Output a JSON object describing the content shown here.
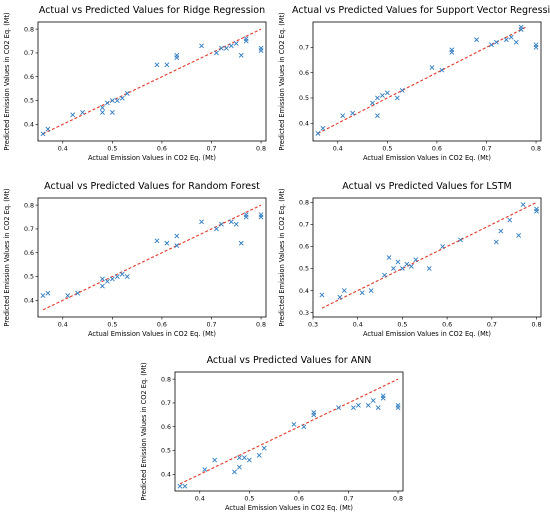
{
  "colors": {
    "points": "#2f7bbf",
    "ideal_line": "#e03a2a"
  },
  "chart_data": [
    {
      "type": "scatter",
      "title": "Actual vs Predicted Values for Ridge Regression",
      "xlabel": "Actual Emission Values in CO2 Eq. (Mt)",
      "ylabel": "Predicted Emission Values in CO2 Eq. (Mt)",
      "xlim": [
        0.35,
        0.81
      ],
      "ylim": [
        0.33,
        0.83
      ],
      "xticks": [
        0.4,
        0.5,
        0.6,
        0.7,
        0.8
      ],
      "xtick_labels": [
        "0.4",
        "0.5",
        "0.6",
        "0.7",
        "0.8"
      ],
      "yticks": [
        0.4,
        0.5,
        0.6,
        0.7,
        0.8
      ],
      "ytick_labels": [
        "0.4",
        "0.5",
        "0.6",
        "0.7",
        "0.8"
      ],
      "ideal_line": [
        0.36,
        0.8
      ],
      "points": [
        [
          0.36,
          0.36
        ],
        [
          0.37,
          0.38
        ],
        [
          0.42,
          0.44
        ],
        [
          0.44,
          0.45
        ],
        [
          0.48,
          0.45
        ],
        [
          0.48,
          0.47
        ],
        [
          0.49,
          0.49
        ],
        [
          0.5,
          0.45
        ],
        [
          0.5,
          0.5
        ],
        [
          0.51,
          0.5
        ],
        [
          0.52,
          0.51
        ],
        [
          0.53,
          0.53
        ],
        [
          0.59,
          0.65
        ],
        [
          0.61,
          0.65
        ],
        [
          0.63,
          0.68
        ],
        [
          0.63,
          0.69
        ],
        [
          0.68,
          0.73
        ],
        [
          0.71,
          0.7
        ],
        [
          0.72,
          0.72
        ],
        [
          0.73,
          0.72
        ],
        [
          0.74,
          0.73
        ],
        [
          0.75,
          0.74
        ],
        [
          0.76,
          0.69
        ],
        [
          0.77,
          0.75
        ],
        [
          0.77,
          0.76
        ],
        [
          0.8,
          0.71
        ],
        [
          0.8,
          0.72
        ]
      ]
    },
    {
      "type": "scatter",
      "title": "Actual vs Predicted Values for Support Vector Regression",
      "xlabel": "Actual Emission Values in CO2 Eq. (Mt)",
      "ylabel": "Predicted Emission Values in CO2 Eq. (Mt)",
      "xlim": [
        0.35,
        0.81
      ],
      "ylim": [
        0.33,
        0.8
      ],
      "xticks": [
        0.4,
        0.5,
        0.6,
        0.7,
        0.8
      ],
      "xtick_labels": [
        "0.4",
        "0.5",
        "0.6",
        "0.7",
        "0.8"
      ],
      "yticks": [
        0.4,
        0.5,
        0.6,
        0.7
      ],
      "ytick_labels": [
        "0.4",
        "0.5",
        "0.6",
        "0.7"
      ],
      "ideal_line": [
        0.36,
        0.78
      ],
      "points": [
        [
          0.36,
          0.36
        ],
        [
          0.37,
          0.38
        ],
        [
          0.41,
          0.43
        ],
        [
          0.43,
          0.44
        ],
        [
          0.47,
          0.48
        ],
        [
          0.48,
          0.43
        ],
        [
          0.48,
          0.5
        ],
        [
          0.49,
          0.51
        ],
        [
          0.5,
          0.52
        ],
        [
          0.52,
          0.5
        ],
        [
          0.53,
          0.53
        ],
        [
          0.59,
          0.62
        ],
        [
          0.61,
          0.61
        ],
        [
          0.63,
          0.68
        ],
        [
          0.63,
          0.69
        ],
        [
          0.68,
          0.73
        ],
        [
          0.71,
          0.71
        ],
        [
          0.72,
          0.72
        ],
        [
          0.74,
          0.73
        ],
        [
          0.75,
          0.74
        ],
        [
          0.76,
          0.72
        ],
        [
          0.77,
          0.77
        ],
        [
          0.77,
          0.78
        ],
        [
          0.8,
          0.7
        ],
        [
          0.8,
          0.71
        ]
      ]
    },
    {
      "type": "scatter",
      "title": "Actual vs Predicted Values for Random Forest",
      "xlabel": "Actual Emission Values in CO2 Eq. (Mt)",
      "ylabel": "Predicted Emission Values in CO2 Eq. (Mt)",
      "xlim": [
        0.35,
        0.81
      ],
      "ylim": [
        0.33,
        0.83
      ],
      "xticks": [
        0.4,
        0.5,
        0.6,
        0.7,
        0.8
      ],
      "xtick_labels": [
        "0.4",
        "0.5",
        "0.6",
        "0.7",
        "0.8"
      ],
      "yticks": [
        0.4,
        0.5,
        0.6,
        0.7,
        0.8
      ],
      "ytick_labels": [
        "0.4",
        "0.5",
        "0.6",
        "0.7",
        "0.8"
      ],
      "ideal_line": [
        0.36,
        0.8
      ],
      "points": [
        [
          0.36,
          0.42
        ],
        [
          0.37,
          0.43
        ],
        [
          0.41,
          0.42
        ],
        [
          0.43,
          0.43
        ],
        [
          0.48,
          0.46
        ],
        [
          0.48,
          0.49
        ],
        [
          0.49,
          0.48
        ],
        [
          0.5,
          0.49
        ],
        [
          0.51,
          0.5
        ],
        [
          0.52,
          0.51
        ],
        [
          0.53,
          0.5
        ],
        [
          0.59,
          0.65
        ],
        [
          0.61,
          0.64
        ],
        [
          0.63,
          0.63
        ],
        [
          0.63,
          0.67
        ],
        [
          0.68,
          0.73
        ],
        [
          0.71,
          0.7
        ],
        [
          0.72,
          0.72
        ],
        [
          0.74,
          0.73
        ],
        [
          0.75,
          0.72
        ],
        [
          0.76,
          0.64
        ],
        [
          0.77,
          0.75
        ],
        [
          0.77,
          0.76
        ],
        [
          0.8,
          0.75
        ],
        [
          0.8,
          0.76
        ]
      ]
    },
    {
      "type": "scatter",
      "title": "Actual vs Predicted Values for LSTM",
      "xlabel": "Actual Emission Values in CO2 Eq. (Mt)",
      "ylabel": "Predicted Emission Values in CO2 Eq. (Mt)",
      "xlim": [
        0.3,
        0.81
      ],
      "ylim": [
        0.28,
        0.82
      ],
      "xticks": [
        0.3,
        0.4,
        0.5,
        0.6,
        0.7,
        0.8
      ],
      "xtick_labels": [
        "0.3",
        "0.4",
        "0.5",
        "0.6",
        "0.7",
        "0.8"
      ],
      "yticks": [
        0.3,
        0.4,
        0.5,
        0.6,
        0.7,
        0.8
      ],
      "ytick_labels": [
        "0.3",
        "0.4",
        "0.5",
        "0.6",
        "0.7",
        "0.8"
      ],
      "ideal_line": [
        0.32,
        0.8
      ],
      "points": [
        [
          0.32,
          0.38
        ],
        [
          0.36,
          0.37
        ],
        [
          0.37,
          0.4
        ],
        [
          0.41,
          0.39
        ],
        [
          0.43,
          0.4
        ],
        [
          0.46,
          0.47
        ],
        [
          0.47,
          0.55
        ],
        [
          0.48,
          0.5
        ],
        [
          0.49,
          0.53
        ],
        [
          0.5,
          0.5
        ],
        [
          0.51,
          0.52
        ],
        [
          0.52,
          0.51
        ],
        [
          0.53,
          0.54
        ],
        [
          0.56,
          0.5
        ],
        [
          0.59,
          0.6
        ],
        [
          0.63,
          0.63
        ],
        [
          0.71,
          0.62
        ],
        [
          0.72,
          0.67
        ],
        [
          0.74,
          0.72
        ],
        [
          0.76,
          0.65
        ],
        [
          0.77,
          0.79
        ],
        [
          0.8,
          0.76
        ],
        [
          0.8,
          0.77
        ]
      ]
    },
    {
      "type": "scatter",
      "title": "Actual vs Predicted Values for ANN",
      "xlabel": "Actual Emission Values in CO2 Eq. (Mt)",
      "ylabel": "Predicted Emission Values in CO2 Eq. (Mt)",
      "xlim": [
        0.35,
        0.81
      ],
      "ylim": [
        0.33,
        0.83
      ],
      "xticks": [
        0.4,
        0.5,
        0.6,
        0.7,
        0.8
      ],
      "xtick_labels": [
        "0.4",
        "0.5",
        "0.6",
        "0.7",
        "0.8"
      ],
      "yticks": [
        0.4,
        0.5,
        0.6,
        0.7,
        0.8
      ],
      "ytick_labels": [
        "0.4",
        "0.5",
        "0.6",
        "0.7",
        "0.8"
      ],
      "ideal_line": [
        0.36,
        0.8
      ],
      "points": [
        [
          0.36,
          0.35
        ],
        [
          0.37,
          0.35
        ],
        [
          0.41,
          0.42
        ],
        [
          0.43,
          0.46
        ],
        [
          0.47,
          0.41
        ],
        [
          0.48,
          0.43
        ],
        [
          0.48,
          0.47
        ],
        [
          0.49,
          0.47
        ],
        [
          0.5,
          0.46
        ],
        [
          0.52,
          0.48
        ],
        [
          0.53,
          0.51
        ],
        [
          0.59,
          0.61
        ],
        [
          0.61,
          0.6
        ],
        [
          0.63,
          0.65
        ],
        [
          0.63,
          0.66
        ],
        [
          0.68,
          0.68
        ],
        [
          0.71,
          0.68
        ],
        [
          0.72,
          0.69
        ],
        [
          0.74,
          0.69
        ],
        [
          0.75,
          0.71
        ],
        [
          0.76,
          0.68
        ],
        [
          0.77,
          0.72
        ],
        [
          0.77,
          0.73
        ],
        [
          0.8,
          0.68
        ],
        [
          0.8,
          0.69
        ]
      ]
    }
  ]
}
